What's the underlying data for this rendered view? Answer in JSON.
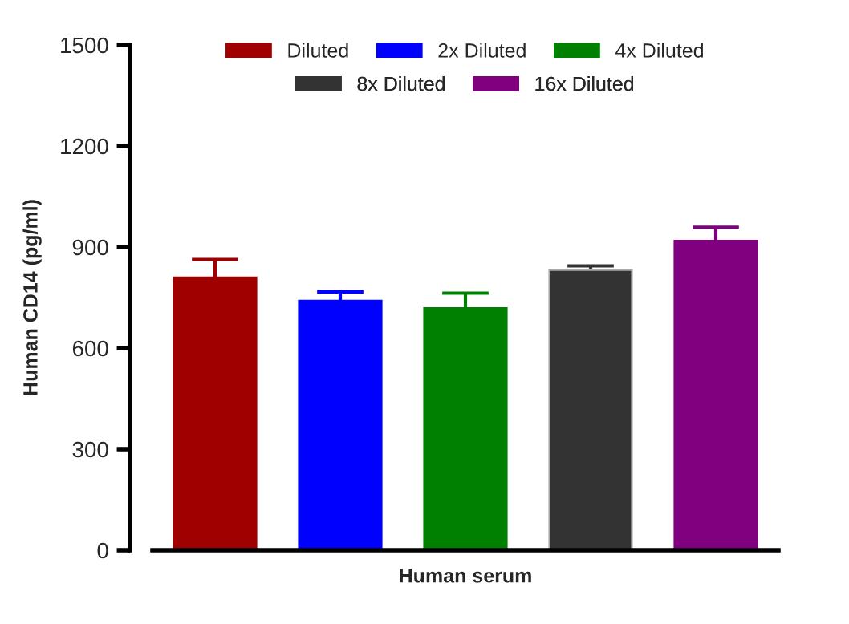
{
  "chart_data": {
    "type": "bar",
    "categories": [
      "Human serum"
    ],
    "ylabel": "Human CD14 (pg/ml)",
    "ylim": [
      0,
      1500
    ],
    "yticks": [
      0,
      300,
      600,
      900,
      1200,
      1500
    ],
    "grid": false,
    "legend": "top",
    "series": [
      {
        "name": "Diluted",
        "color": "#a00000",
        "values": [
          810
        ],
        "errors": [
          [
            810,
            863
          ]
        ]
      },
      {
        "name": "2x Diluted",
        "color": "#0000ff",
        "values": [
          741
        ],
        "errors": [
          [
            741,
            767
          ]
        ]
      },
      {
        "name": "4x Diluted",
        "color": "#008000",
        "values": [
          719
        ],
        "errors": [
          [
            719,
            763
          ]
        ]
      },
      {
        "name": "8x Diluted",
        "color": "#333333",
        "values": [
          832
        ],
        "errors": [
          [
            832,
            844
          ]
        ]
      },
      {
        "name": "16x Diluted",
        "color": "#800080",
        "values": [
          919
        ],
        "errors": [
          [
            919,
            959
          ]
        ]
      }
    ]
  }
}
